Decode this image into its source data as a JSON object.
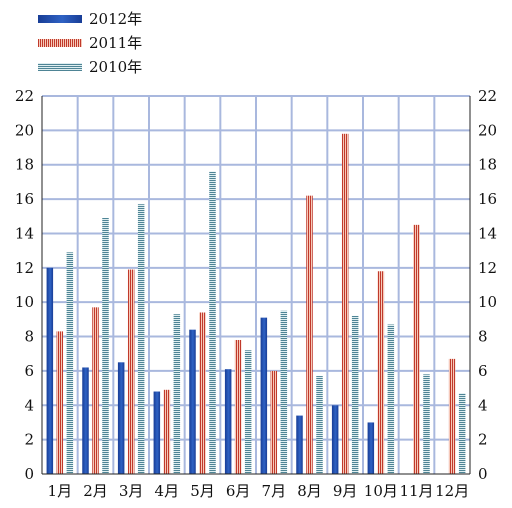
{
  "chart_data": {
    "type": "bar",
    "categories": [
      "1月",
      "2月",
      "3月",
      "4月",
      "5月",
      "6月",
      "7月",
      "8月",
      "9月",
      "10月",
      "11月",
      "12月"
    ],
    "series": [
      {
        "name": "2012年",
        "values": [
          12.0,
          6.2,
          6.5,
          4.8,
          8.4,
          6.1,
          9.1,
          3.4,
          4.0,
          3.0,
          null,
          null
        ],
        "color": "#1f4aa8",
        "pattern": "solid"
      },
      {
        "name": "2011年",
        "values": [
          8.3,
          9.7,
          11.9,
          4.9,
          9.4,
          7.8,
          6.0,
          16.2,
          19.8,
          11.8,
          14.5,
          6.7
        ],
        "color": "#c0392b",
        "pattern": "vertical-stripes"
      },
      {
        "name": "2010年",
        "values": [
          12.9,
          14.9,
          15.7,
          9.3,
          17.6,
          7.2,
          9.5,
          5.7,
          9.2,
          8.7,
          5.8,
          4.7
        ],
        "color": "#5f8a9a",
        "pattern": "horizontal-stripes"
      }
    ],
    "yticks": [
      0,
      2,
      4,
      6,
      8,
      10,
      12,
      14,
      16,
      18,
      20,
      22
    ],
    "ylim": [
      0,
      22
    ],
    "grid": true,
    "legend": "top-left",
    "dual_y_axis": true
  }
}
